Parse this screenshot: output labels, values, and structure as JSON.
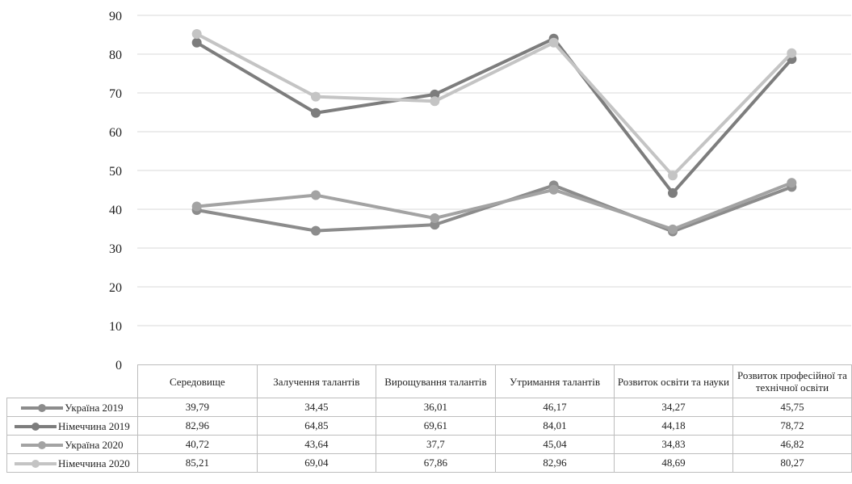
{
  "chart_data": {
    "type": "line",
    "categories": [
      "Середовище",
      "Залучення талантів",
      "Вирощування талантів",
      "Утримання талантів",
      "Розвиток освіти та науки",
      "Розвиток професійної та технічної освіти"
    ],
    "series": [
      {
        "name": "Україна 2019",
        "color": "#8c8c8c",
        "values": [
          39.79,
          34.45,
          36.01,
          46.17,
          34.27,
          45.75
        ],
        "labels": [
          "39,79",
          "34,45",
          "36,01",
          "46,17",
          "34,27",
          "45,75"
        ]
      },
      {
        "name": "Німеччина 2019",
        "color": "#7d7d7d",
        "values": [
          82.96,
          64.85,
          69.61,
          84.01,
          44.18,
          78.72
        ],
        "labels": [
          "82,96",
          "64,85",
          "69,61",
          "84,01",
          "44,18",
          "78,72"
        ]
      },
      {
        "name": "Україна 2020",
        "color": "#a3a3a3",
        "values": [
          40.72,
          43.64,
          37.7,
          45.04,
          34.83,
          46.82
        ],
        "labels": [
          "40,72",
          "43,64",
          "37,7",
          "45,04",
          "34,83",
          "46,82"
        ]
      },
      {
        "name": "Німеччина 2020",
        "color": "#c4c4c4",
        "values": [
          85.21,
          69.04,
          67.86,
          82.96,
          48.69,
          80.27
        ],
        "labels": [
          "85,21",
          "69,04",
          "67,86",
          "82,96",
          "48,69",
          "80,27"
        ]
      }
    ],
    "ylim": [
      0,
      90
    ],
    "yticks": [
      0,
      10,
      20,
      30,
      40,
      50,
      60,
      70,
      80,
      90
    ],
    "grid": true,
    "legend": "data-table"
  }
}
